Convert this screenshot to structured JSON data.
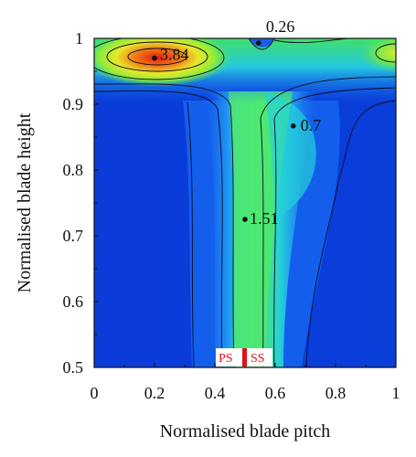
{
  "chart_data": {
    "type": "heatmap",
    "title": "",
    "xlabel": "Normalised blade pitch",
    "ylabel": "Normalised blade height",
    "xlim": [
      0,
      1
    ],
    "ylim": [
      0.5,
      1
    ],
    "x_ticks": [
      "0",
      "0.2",
      "0.4",
      "0.6",
      "0.8",
      "1"
    ],
    "y_ticks": [
      "0.5",
      "0.6",
      "0.7",
      "0.8",
      "0.9",
      "1"
    ],
    "colormap": [
      "#0a38d6",
      "#1a73f0",
      "#22c8e8",
      "#3fe878",
      "#8cf03c",
      "#e8f028",
      "#f0a020",
      "#e02a10"
    ],
    "annotations": [
      {
        "label": "3.84",
        "x": 0.2,
        "y": 0.97
      },
      {
        "label": "0.26",
        "x": 0.545,
        "y": 0.993
      },
      {
        "label": "0.7",
        "x": 0.66,
        "y": 0.867
      },
      {
        "label": "1.51",
        "x": 0.5,
        "y": 0.725
      }
    ],
    "side_labels": {
      "pressure_side": "PS",
      "suction_side": "SS"
    },
    "grid": false
  }
}
